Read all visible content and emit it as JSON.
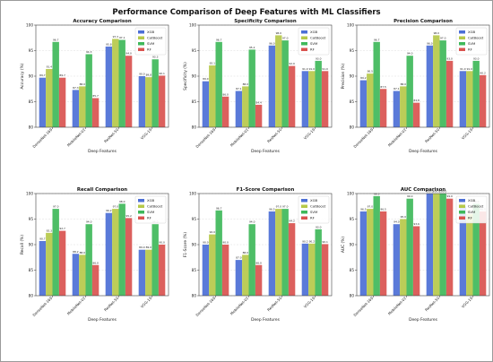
{
  "figure": {
    "suptitle": "Performance Comparison of Deep Features with ML Classifiers"
  },
  "colors": {
    "XGB": "#4c6fd6",
    "CatBoost": "#b6c94a",
    "SVM": "#3fb85a",
    "RF": "#d9534f"
  },
  "chart_data": [
    {
      "type": "bar",
      "title": "Accuracy Comparison",
      "xlabel": "Deep Features",
      "ylabel": "Accuracy (%)",
      "categories": [
        "DenseNet-169",
        "MobileNet-V2",
        "ResNet-50",
        "VGG-19"
      ],
      "ylim": [
        80,
        100
      ],
      "yticks": [
        80,
        85,
        90,
        95,
        100
      ],
      "grid": true,
      "legend": "top-right",
      "series": [
        {
          "name": "XGB",
          "values": [
            89.7,
            87.3,
            95.8,
            90.0
          ]
        },
        {
          "name": "CatBoost",
          "values": [
            91.4,
            88.0,
            97.3,
            89.8
          ]
        },
        {
          "name": "SVM",
          "values": [
            96.7,
            94.3,
            97.1,
            93.3
          ]
        },
        {
          "name": "RF",
          "values": [
            89.7,
            85.7,
            94.0,
            90.1
          ]
        }
      ]
    },
    {
      "type": "bar",
      "title": "Specificity Comparison",
      "xlabel": "Deep Features",
      "ylabel": "Specificity (%)",
      "categories": [
        "DenseNet-169",
        "MobileNet-V2",
        "ResNet-50",
        "VGG-19"
      ],
      "ylim": [
        80,
        100
      ],
      "yticks": [
        80,
        85,
        90,
        95,
        100
      ],
      "grid": true,
      "legend": "top-right",
      "series": [
        {
          "name": "XGB",
          "values": [
            89.0,
            87.1,
            96.0,
            91.0
          ]
        },
        {
          "name": "CatBoost",
          "values": [
            92.1,
            88.0,
            98.0,
            91.0
          ]
        },
        {
          "name": "SVM",
          "values": [
            96.7,
            95.2,
            97.0,
            93.0
          ]
        },
        {
          "name": "RF",
          "values": [
            86.0,
            84.4,
            92.0,
            91.0
          ]
        }
      ]
    },
    {
      "type": "bar",
      "title": "Precision Comparison",
      "xlabel": "Deep Features",
      "ylabel": "Precision (%)",
      "categories": [
        "DenseNet-169",
        "MobileNet-V2",
        "ResNet-50",
        "VGG-19"
      ],
      "ylim": [
        80,
        100
      ],
      "yticks": [
        80,
        85,
        90,
        95,
        100
      ],
      "grid": true,
      "legend": "top-right",
      "series": [
        {
          "name": "XGB",
          "values": [
            89.2,
            87.1,
            96.0,
            91.0
          ]
        },
        {
          "name": "CatBoost",
          "values": [
            90.5,
            88.0,
            98.0,
            91.0
          ]
        },
        {
          "name": "SVM",
          "values": [
            96.7,
            94.0,
            97.0,
            93.0
          ]
        },
        {
          "name": "RF",
          "values": [
            87.5,
            84.8,
            93.0,
            90.2
          ]
        }
      ]
    },
    {
      "type": "bar",
      "title": "Recall Comparison",
      "xlabel": "Deep Features",
      "ylabel": "Recall (%)",
      "categories": [
        "DenseNet-169",
        "MobileNet-V2",
        "ResNet-50",
        "VGG-19"
      ],
      "ylim": [
        80,
        100
      ],
      "yticks": [
        80,
        85,
        90,
        95,
        100
      ],
      "grid": true,
      "legend": "top-right",
      "series": [
        {
          "name": "XGB",
          "values": [
            90.7,
            88.2,
            96.2,
            89.0
          ]
        },
        {
          "name": "CatBoost",
          "values": [
            92.3,
            88.0,
            97.0,
            89.0
          ]
        },
        {
          "name": "SVM",
          "values": [
            97.0,
            94.0,
            98.0,
            94.0
          ]
        },
        {
          "name": "RF",
          "values": [
            92.7,
            86.0,
            95.2,
            90.0
          ]
        }
      ]
    },
    {
      "type": "bar",
      "title": "F1-Score Comparison",
      "xlabel": "Deep Features",
      "ylabel": "F1-Score (%)",
      "categories": [
        "DenseNet-169",
        "MobileNet-V2",
        "ResNet-50",
        "VGG-19"
      ],
      "ylim": [
        80,
        100
      ],
      "yticks": [
        80,
        85,
        90,
        95,
        100
      ],
      "grid": true,
      "legend": "top-right",
      "series": [
        {
          "name": "XGB",
          "values": [
            90.0,
            87.0,
            96.5,
            90.2
          ]
        },
        {
          "name": "CatBoost",
          "values": [
            92.0,
            88.0,
            97.0,
            90.2
          ]
        },
        {
          "name": "SVM",
          "values": [
            96.7,
            94.0,
            97.0,
            93.0
          ]
        },
        {
          "name": "RF",
          "values": [
            90.0,
            86.0,
            94.2,
            90.1
          ]
        }
      ]
    },
    {
      "type": "bar",
      "title": "AUC Comparison",
      "xlabel": "Deep Features",
      "ylabel": "AUC (%)",
      "categories": [
        "DenseNet-169",
        "MobileNet-V2",
        "ResNet-50",
        "VGG-19"
      ],
      "ylim": [
        80,
        100
      ],
      "yticks": [
        80,
        85,
        90,
        95,
        100
      ],
      "grid": true,
      "legend": "top-right",
      "series": [
        {
          "name": "XGB",
          "values": [
            96.5,
            94.0,
            100,
            97.5
          ]
        },
        {
          "name": "CatBoost",
          "values": [
            97.0,
            95.0,
            100,
            96.0
          ]
        },
        {
          "name": "SVM",
          "values": [
            99.5,
            99.0,
            100,
            98.0
          ]
        },
        {
          "name": "RF",
          "values": [
            96.5,
            93.6,
            99.0,
            96.5
          ]
        }
      ]
    }
  ]
}
